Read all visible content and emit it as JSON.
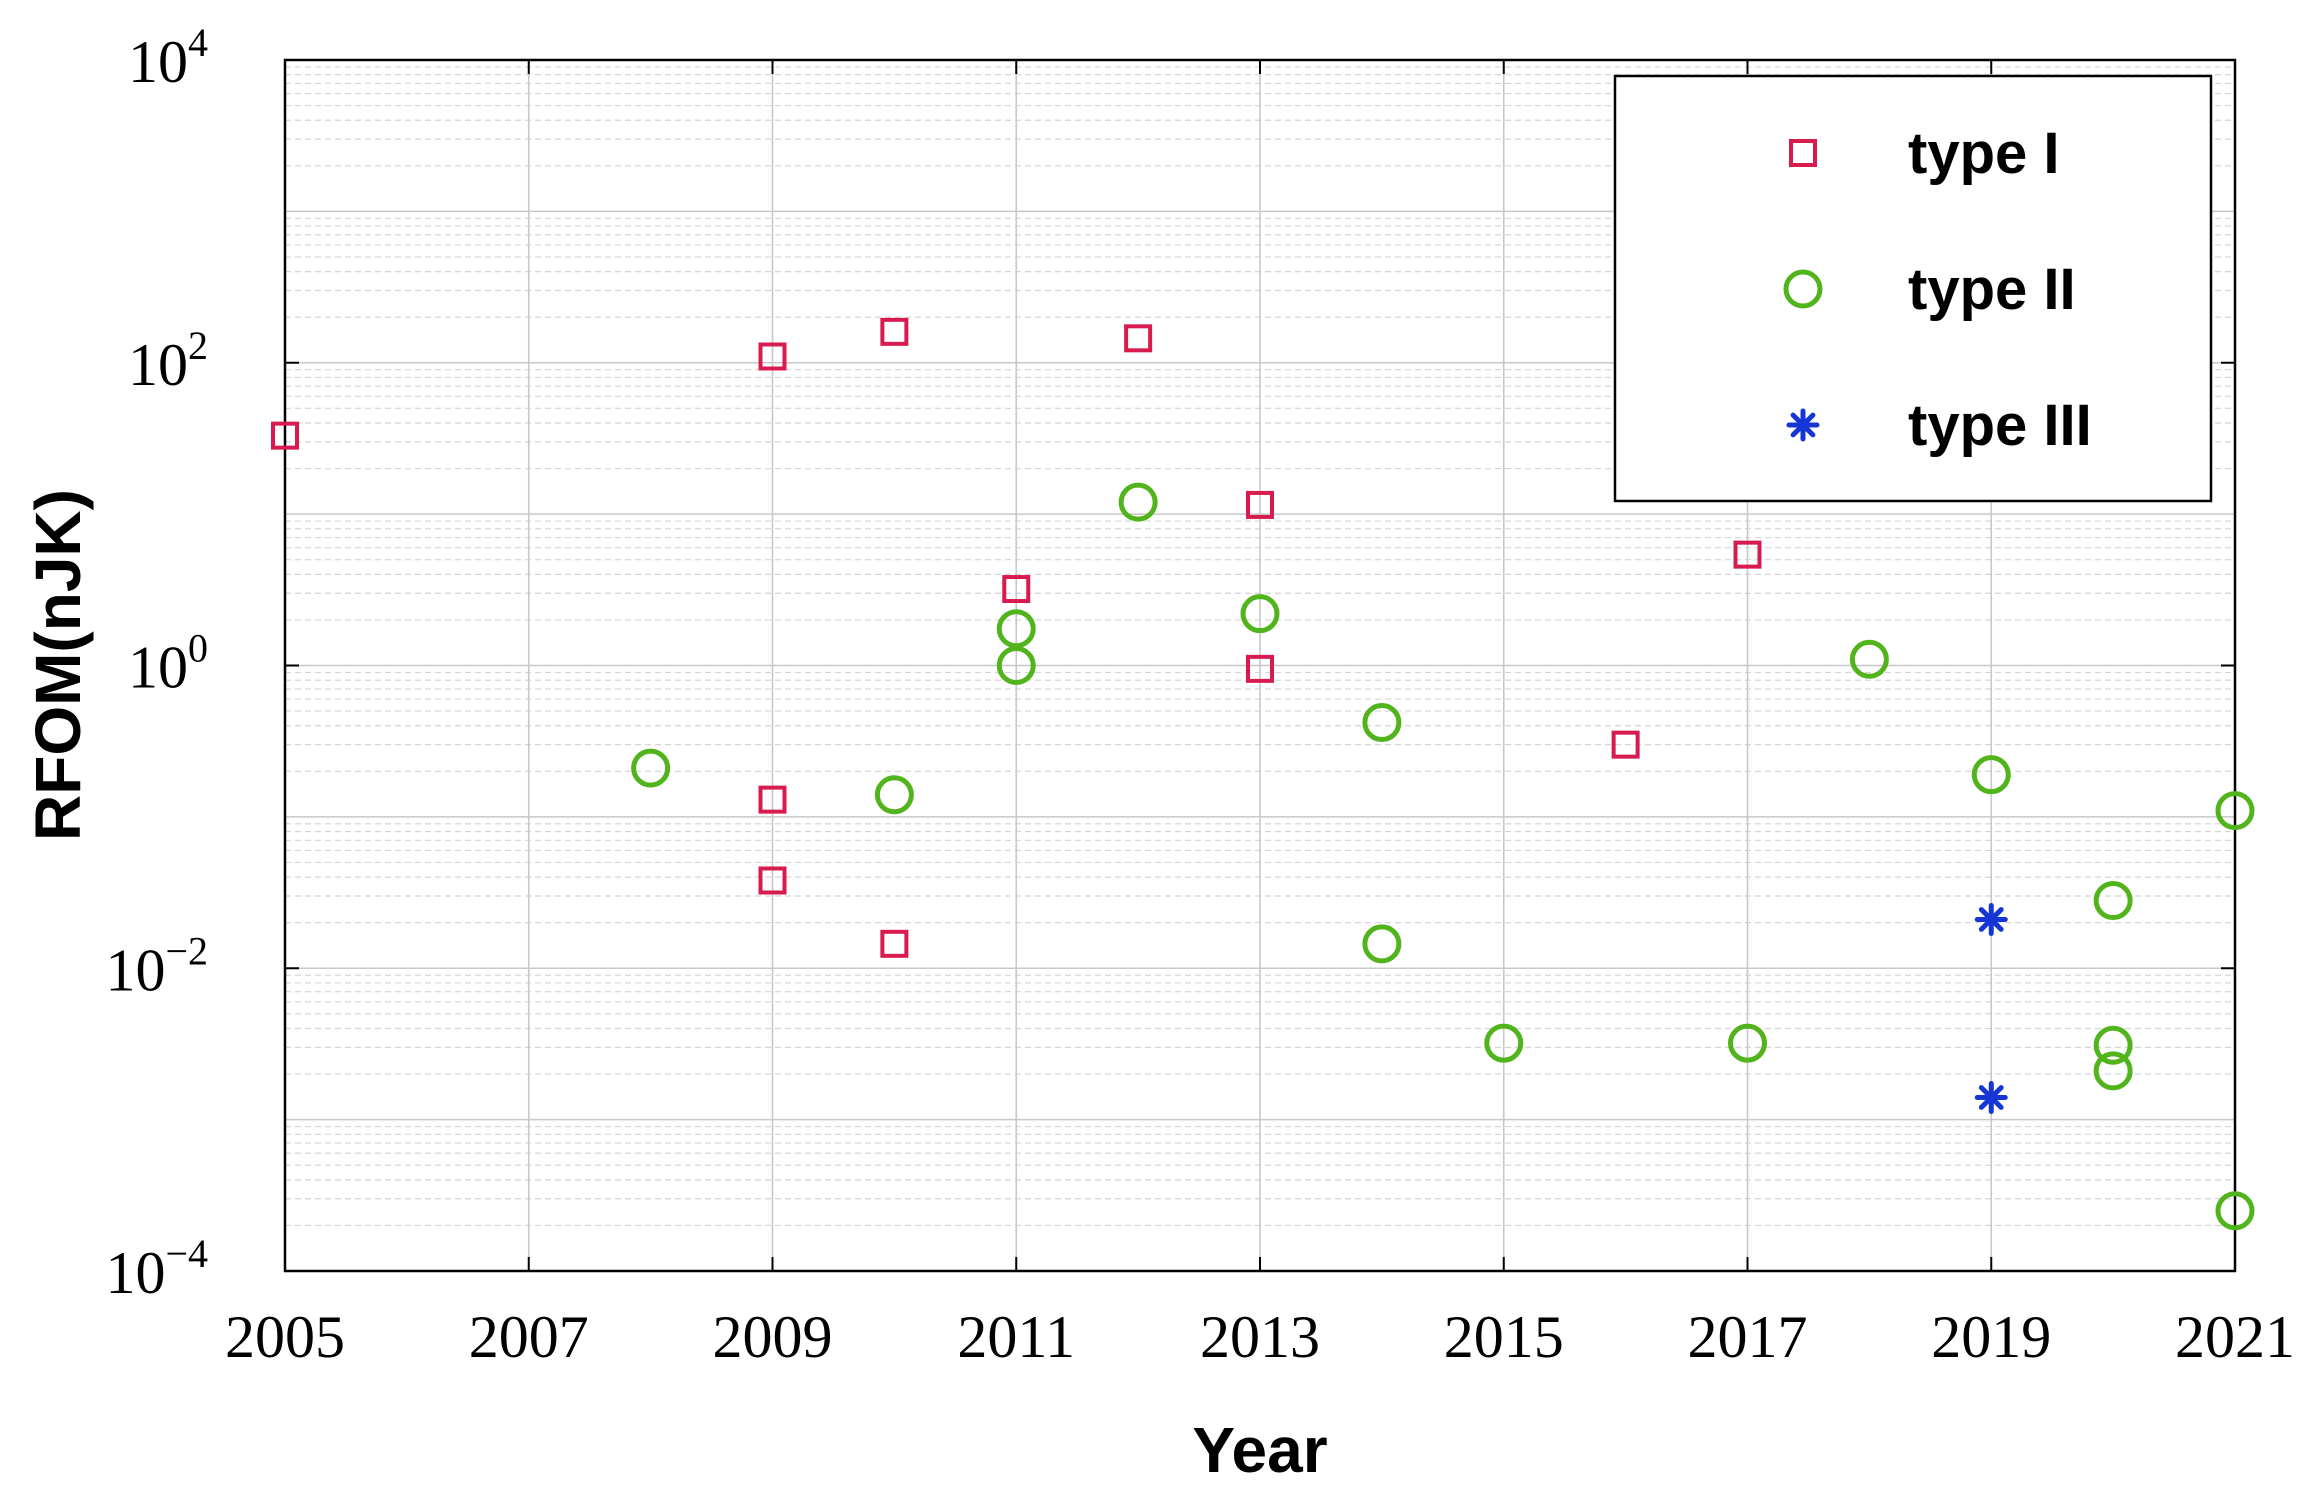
{
  "chart_data": {
    "type": "scatter",
    "title": "",
    "xlabel": "Year",
    "ylabel": "RFOM(nJK)",
    "xlim": [
      2005,
      2021
    ],
    "ylim": [
      0.0001,
      10000
    ],
    "yscale": "log",
    "grid": true,
    "legend_position": "top-right",
    "x_ticks": [
      "2005",
      "2007",
      "2009",
      "2011",
      "2013",
      "2015",
      "2017",
      "2019",
      "2021"
    ],
    "y_ticks": [
      {
        "base": "10",
        "exp": "4",
        "value": 10000
      },
      {
        "base": "10",
        "exp": "2",
        "value": 100
      },
      {
        "base": "10",
        "exp": "0",
        "value": 1
      },
      {
        "base": "10",
        "exp": "−2",
        "value": 0.01
      },
      {
        "base": "10",
        "exp": "−4",
        "value": 0.0001
      }
    ],
    "series": [
      {
        "name": "type I",
        "marker": "square",
        "color": "#d81b4e",
        "points": [
          {
            "x": 2005,
            "y": 33
          },
          {
            "x": 2009,
            "y": 110
          },
          {
            "x": 2009,
            "y": 0.13
          },
          {
            "x": 2009,
            "y": 0.038
          },
          {
            "x": 2010,
            "y": 160
          },
          {
            "x": 2010,
            "y": 0.0145
          },
          {
            "x": 2011,
            "y": 3.2
          },
          {
            "x": 2012,
            "y": 145
          },
          {
            "x": 2013,
            "y": 11.5
          },
          {
            "x": 2013,
            "y": 0.95
          },
          {
            "x": 2016,
            "y": 0.3
          },
          {
            "x": 2017,
            "y": 5.4
          }
        ]
      },
      {
        "name": "type II",
        "marker": "circle",
        "color": "#52b41c",
        "points": [
          {
            "x": 2008,
            "y": 0.21
          },
          {
            "x": 2010,
            "y": 0.14
          },
          {
            "x": 2011,
            "y": 1.75
          },
          {
            "x": 2011,
            "y": 1.0
          },
          {
            "x": 2012,
            "y": 12
          },
          {
            "x": 2013,
            "y": 2.2
          },
          {
            "x": 2014,
            "y": 0.42
          },
          {
            "x": 2014,
            "y": 0.0145
          },
          {
            "x": 2015,
            "y": 0.0032
          },
          {
            "x": 2017,
            "y": 0.0032
          },
          {
            "x": 2018,
            "y": 1.1
          },
          {
            "x": 2019,
            "y": 0.19
          },
          {
            "x": 2020,
            "y": 0.028
          },
          {
            "x": 2020,
            "y": 0.0031
          },
          {
            "x": 2020,
            "y": 0.0021
          },
          {
            "x": 2021,
            "y": 0.11
          },
          {
            "x": 2021,
            "y": 0.00025
          }
        ]
      },
      {
        "name": "type III",
        "marker": "asterisk",
        "color": "#1535d4",
        "points": [
          {
            "x": 2019,
            "y": 0.021
          },
          {
            "x": 2019,
            "y": 0.0014
          }
        ]
      }
    ]
  }
}
